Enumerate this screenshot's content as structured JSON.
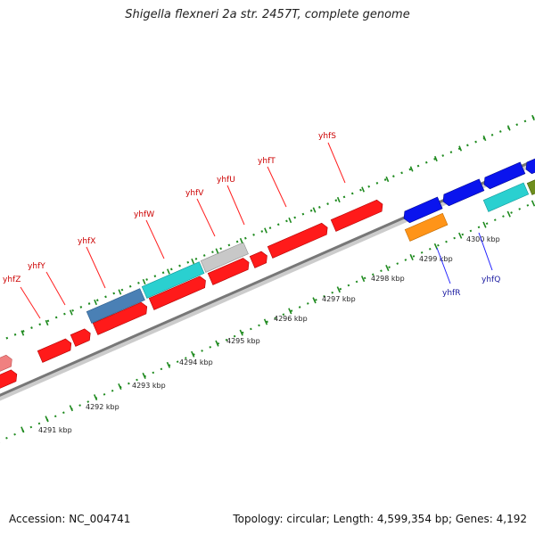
{
  "title": "Shigella flexneri 2a str. 2457T, complete genome",
  "footer": {
    "accession": "Accession: NC_004741",
    "summary": "Topology: circular; Length: 4,599,354 bp; Genes: 4,192"
  },
  "colors": {
    "forward_gene": "#ff0000",
    "forward_label": "#cc0000",
    "reverse_gene": "#0a14ee",
    "reverse_label": "#1a1aa0",
    "backbone": "#888888",
    "tick": "#1e8a1e"
  },
  "scale": {
    "unit": "kbp",
    "labels": [
      "4291 kbp",
      "4292 kbp",
      "4293 kbp",
      "4294 kbp",
      "4295 kbp",
      "4296 kbp",
      "4297 kbp",
      "4298 kbp",
      "4299 kbp",
      "4300 kbp"
    ]
  },
  "forward_gene_labels": [
    "yhfZ",
    "yhfY",
    "yhfX",
    "yhfW",
    "yhfV",
    "yhfU",
    "yhfT",
    "yhfS"
  ],
  "reverse_gene_labels": [
    "yhfR",
    "yhfQ"
  ]
}
